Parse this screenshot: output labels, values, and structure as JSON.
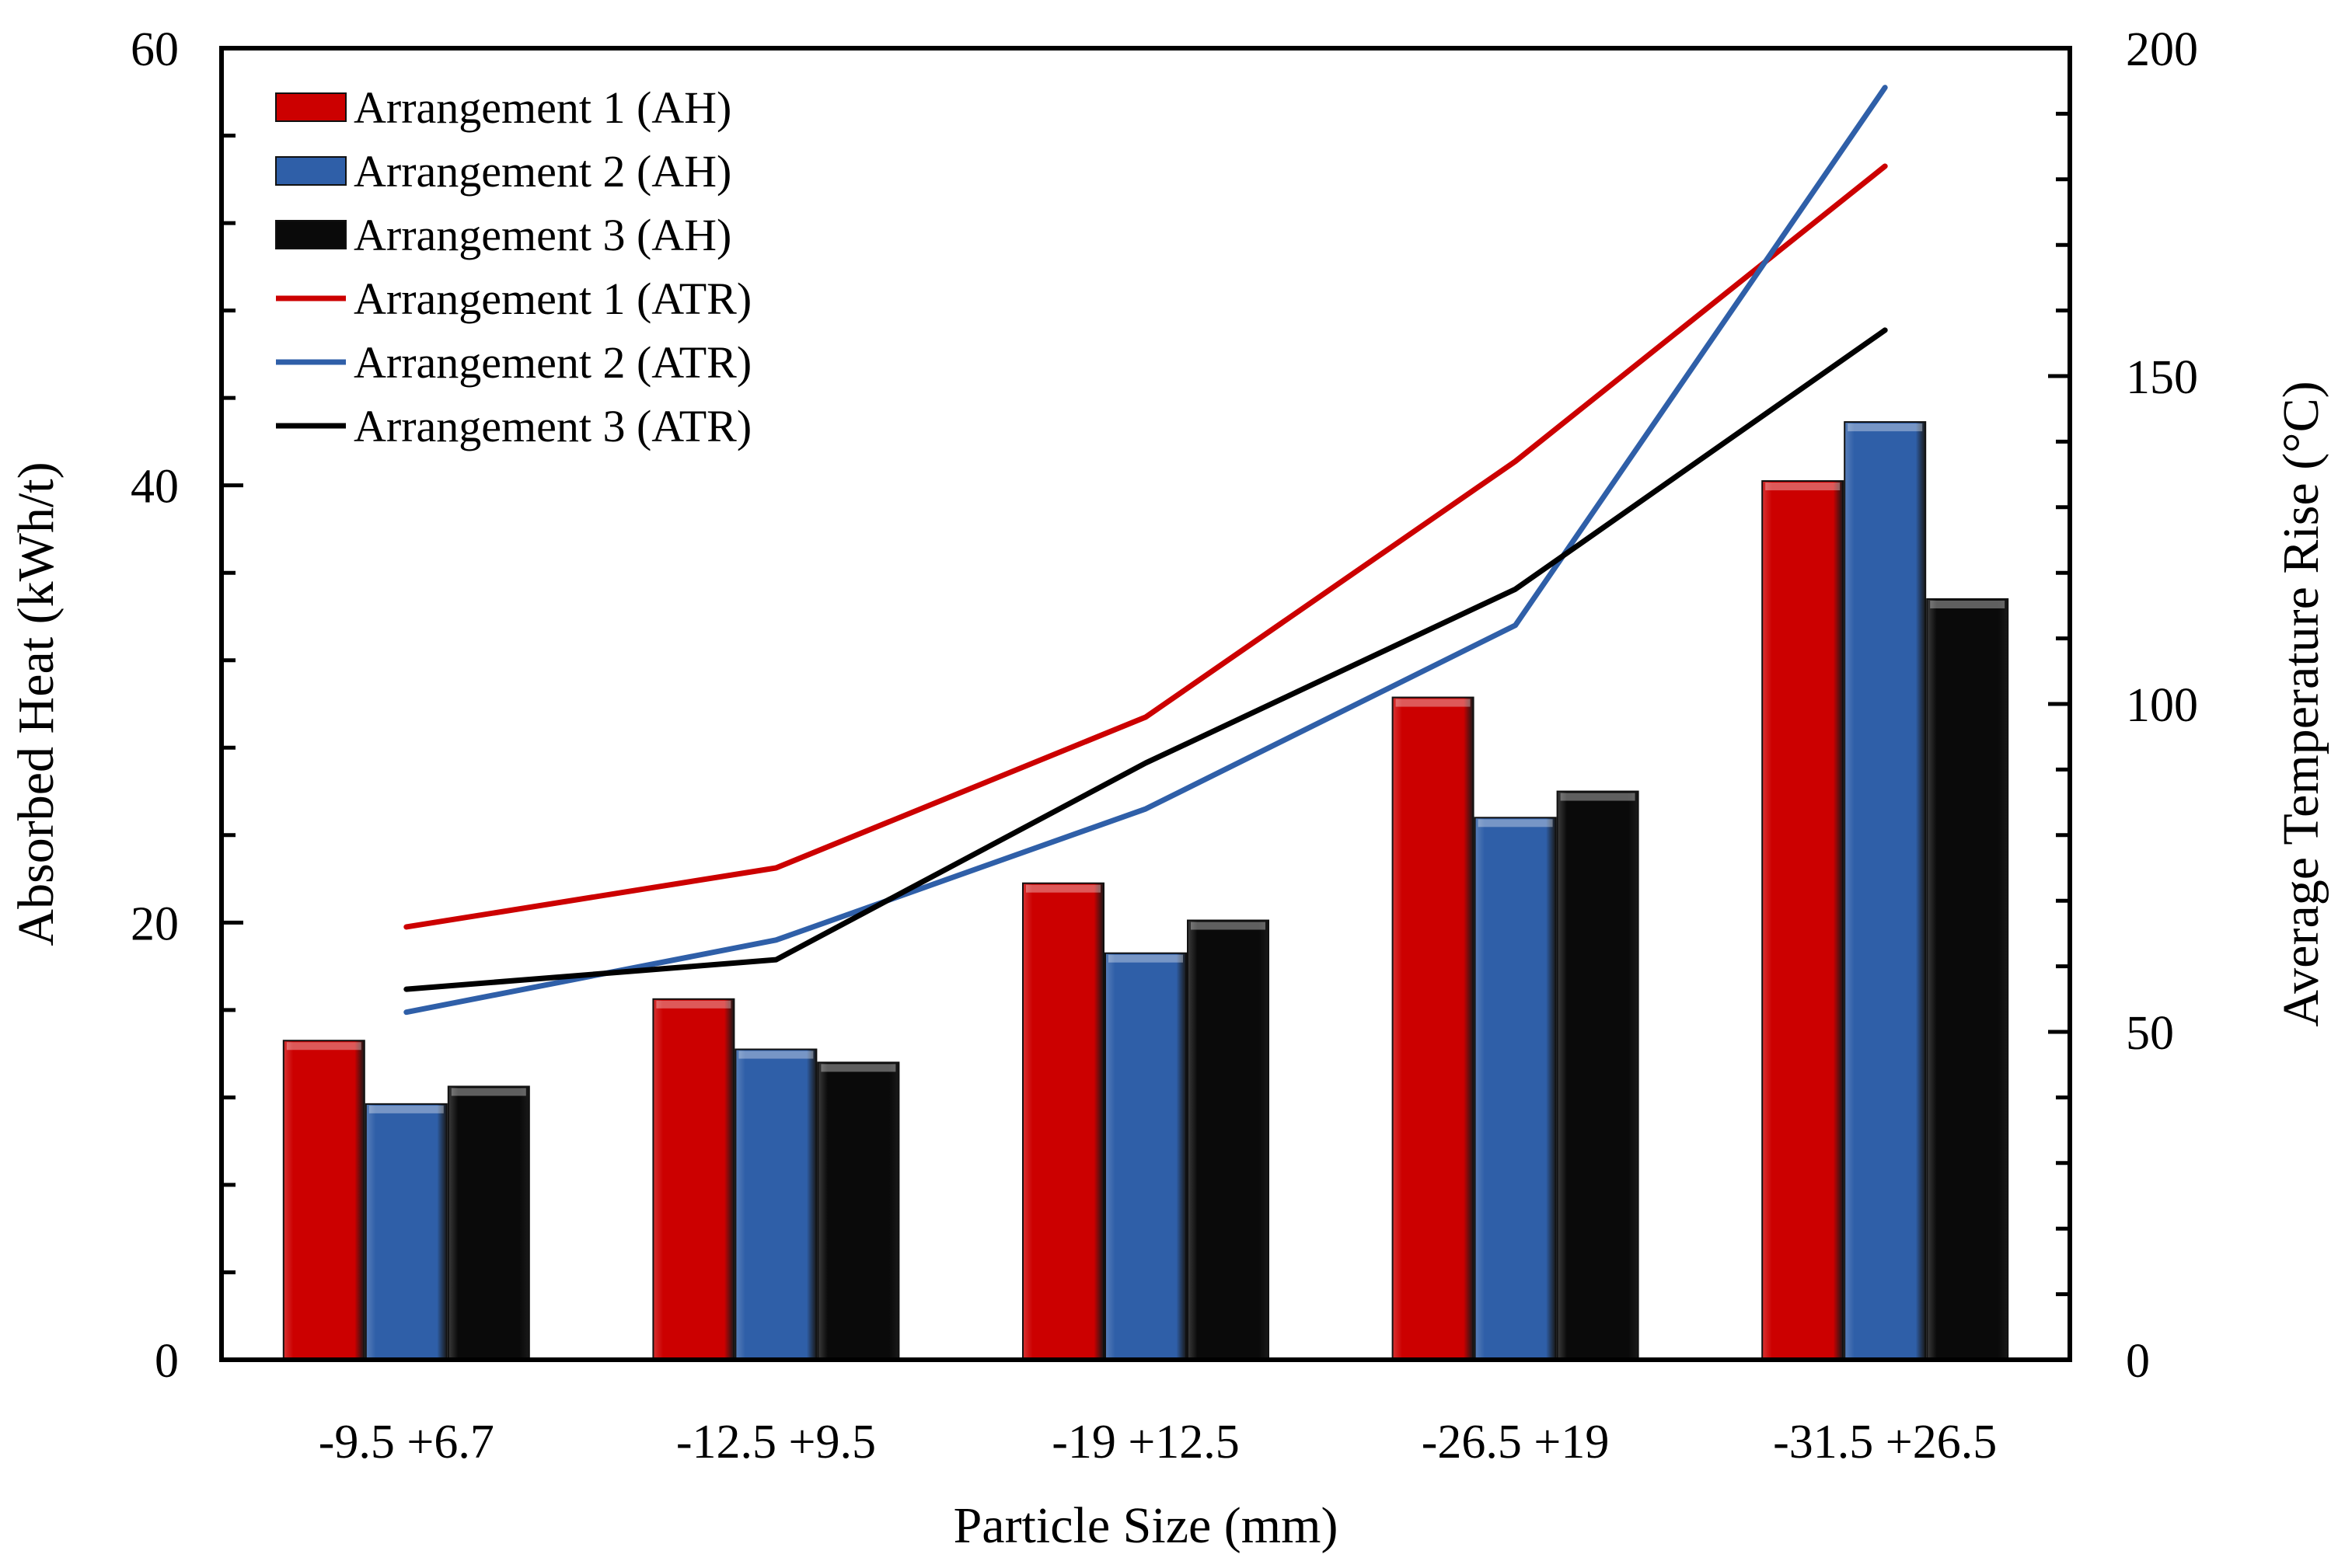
{
  "chart_data": {
    "type": "bar",
    "xlabel": "Particle Size (mm)",
    "ylabel": "Absorbed Heat (kWh/t)",
    "y2label": "Average Temperature Rise (°C)",
    "categories": [
      "-9.5 +6.7",
      "-12.5 +9.5",
      "-19 +12.5",
      "-26.5 +19",
      "-31.5 +26.5"
    ],
    "ylim": [
      0,
      60
    ],
    "y2lim": [
      0,
      200
    ],
    "yticks": [
      "0",
      "20",
      "40",
      "60"
    ],
    "y2ticks": [
      "0",
      "50",
      "100",
      "150",
      "200"
    ],
    "legend_position": "top-left",
    "bar_series": [
      {
        "name": "Arrangement 1 (AH)",
        "values": [
          14.6,
          16.5,
          21.8,
          30.3,
          40.2
        ],
        "color": "#cc0000"
      },
      {
        "name": "Arrangement 2 (AH)",
        "values": [
          11.7,
          14.2,
          18.6,
          24.8,
          42.9
        ],
        "color": "#2f5fa8"
      },
      {
        "name": "Arrangement 3 (AH)",
        "values": [
          12.5,
          13.6,
          20.1,
          26.0,
          34.8
        ],
        "color": "#0a0a0a"
      }
    ],
    "line_series": [
      {
        "name": "Arrangement 1 (ATR)",
        "axis": "right",
        "values": [
          66,
          75,
          98,
          137,
          182
        ],
        "color": "#cc0000"
      },
      {
        "name": "Arrangement 2 (ATR)",
        "axis": "right",
        "values": [
          53,
          64,
          84,
          112,
          194
        ],
        "color": "#2f5fa8"
      },
      {
        "name": "Arrangement 3 (ATR)",
        "axis": "right",
        "values": [
          56.5,
          61,
          91,
          117.5,
          157
        ],
        "color": "#000000"
      }
    ]
  }
}
